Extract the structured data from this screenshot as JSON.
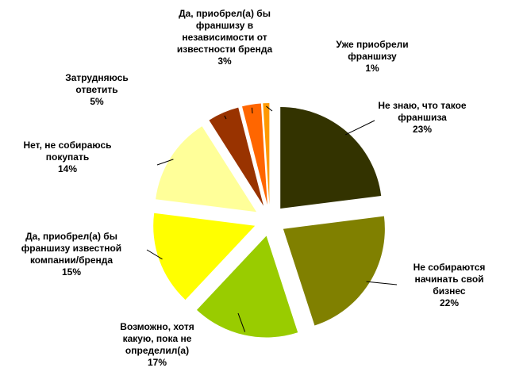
{
  "chart_data": {
    "type": "pie",
    "title": "",
    "exploded": true,
    "slices": [
      {
        "label_lines": [
          "Не знаю, что такое",
          "франшиза"
        ],
        "percent_label": "23%",
        "value": 23,
        "color": "#333300"
      },
      {
        "label_lines": [
          "Не собираются",
          "начинать свой",
          "бизнес"
        ],
        "percent_label": "22%",
        "value": 22,
        "color": "#808000"
      },
      {
        "label_lines": [
          "Возможно, хотя",
          "какую, пока не",
          "определил(а)"
        ],
        "percent_label": "17%",
        "value": 17,
        "color": "#99CC00"
      },
      {
        "label_lines": [
          "Да, приобрел(а) бы",
          "франшизу известной",
          "компании/бренда"
        ],
        "percent_label": "15%",
        "value": 15,
        "color": "#FFFF00"
      },
      {
        "label_lines": [
          "Нет, не собираюсь",
          "покупать"
        ],
        "percent_label": "14%",
        "value": 14,
        "color": "#FFFF99"
      },
      {
        "label_lines": [
          "Затрудняюсь",
          "ответить"
        ],
        "percent_label": "5%",
        "value": 5,
        "color": "#993300"
      },
      {
        "label_lines": [
          "Да, приобрел(а) бы",
          "франшизу в",
          "независимости от",
          "известности бренда"
        ],
        "percent_label": "3%",
        "value": 3,
        "color": "#FF6600"
      },
      {
        "label_lines": [
          "Уже приобрели",
          "франшизу"
        ],
        "percent_label": "1%",
        "value": 1,
        "color": "#FF9900"
      }
    ]
  }
}
